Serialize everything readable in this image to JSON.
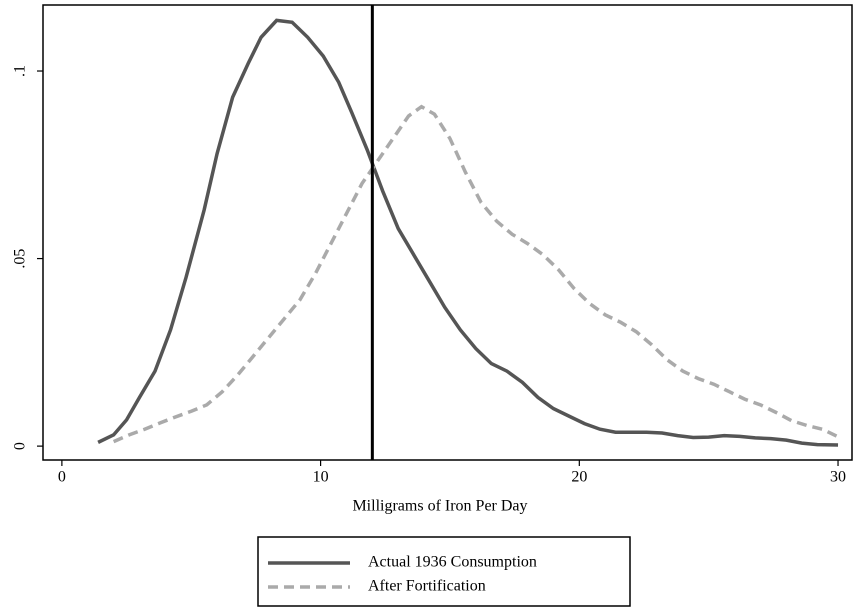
{
  "chart_data": {
    "type": "line",
    "xlabel": "Milligrams of Iron Per Day",
    "xlim": [
      -0.73,
      30.54
    ],
    "xticks": [
      0,
      10,
      20,
      30
    ],
    "ylim": [
      -0.0037,
      0.1176
    ],
    "yticks": [
      0,
      {
        "value": 0.05,
        "label": ".05"
      },
      {
        "value": 0.1,
        "label": ".1"
      }
    ],
    "vline": 12,
    "series": [
      {
        "name": "Actual 1936 Consumption",
        "color": "#555555",
        "dash": false,
        "x": [
          1.4,
          2,
          2.5,
          3,
          3.6,
          4.2,
          4.8,
          5.5,
          6,
          6.6,
          7.2,
          7.7,
          8.3,
          8.9,
          9.5,
          10.1,
          10.7,
          11.2,
          11.8,
          12.4,
          13,
          13.6,
          14.2,
          14.8,
          15.4,
          16,
          16.6,
          17.2,
          17.8,
          18.4,
          19,
          19.6,
          20.2,
          20.8,
          21.4,
          22,
          22.6,
          23.2,
          23.8,
          24.4,
          25,
          25.6,
          26.2,
          26.8,
          27.4,
          28,
          28.6,
          29.2,
          30
        ],
        "values": [
          0.001,
          0.003,
          0.007,
          0.013,
          0.02,
          0.031,
          0.045,
          0.063,
          0.078,
          0.093,
          0.102,
          0.109,
          0.1135,
          0.113,
          0.109,
          0.104,
          0.097,
          0.089,
          0.079,
          0.068,
          0.058,
          0.051,
          0.044,
          0.037,
          0.031,
          0.026,
          0.022,
          0.02,
          0.017,
          0.013,
          0.01,
          0.008,
          0.006,
          0.0045,
          0.0037,
          0.0037,
          0.0037,
          0.0035,
          0.0028,
          0.0023,
          0.0024,
          0.0028,
          0.0026,
          0.0022,
          0.002,
          0.0016,
          0.0008,
          0.0004,
          0.0003
        ]
      },
      {
        "name": "After Fortification",
        "color": "#aaaaaa",
        "dash": true,
        "x": [
          2,
          2.6,
          3.2,
          3.8,
          4.4,
          5,
          5.6,
          6.2,
          6.8,
          7.4,
          8,
          8.6,
          9.2,
          9.8,
          10.4,
          11,
          11.6,
          12.2,
          12.8,
          13.4,
          13.9,
          14.4,
          15,
          15.6,
          16.2,
          16.8,
          17.4,
          18,
          18.6,
          19.2,
          19.8,
          20.4,
          21,
          21.6,
          22.2,
          22.8,
          23.4,
          24,
          24.6,
          25.2,
          25.8,
          26.4,
          27,
          27.6,
          28.2,
          28.8,
          29.4,
          30
        ],
        "values": [
          0.0012,
          0.003,
          0.0045,
          0.0062,
          0.0078,
          0.0093,
          0.011,
          0.0145,
          0.019,
          0.024,
          0.029,
          0.034,
          0.039,
          0.046,
          0.054,
          0.062,
          0.07,
          0.076,
          0.082,
          0.088,
          0.0905,
          0.0885,
          0.082,
          0.073,
          0.065,
          0.06,
          0.0565,
          0.054,
          0.051,
          0.047,
          0.042,
          0.038,
          0.035,
          0.033,
          0.0305,
          0.027,
          0.023,
          0.02,
          0.018,
          0.0165,
          0.0145,
          0.0125,
          0.011,
          0.009,
          0.0068,
          0.0055,
          0.0045,
          0.0025
        ]
      }
    ]
  }
}
